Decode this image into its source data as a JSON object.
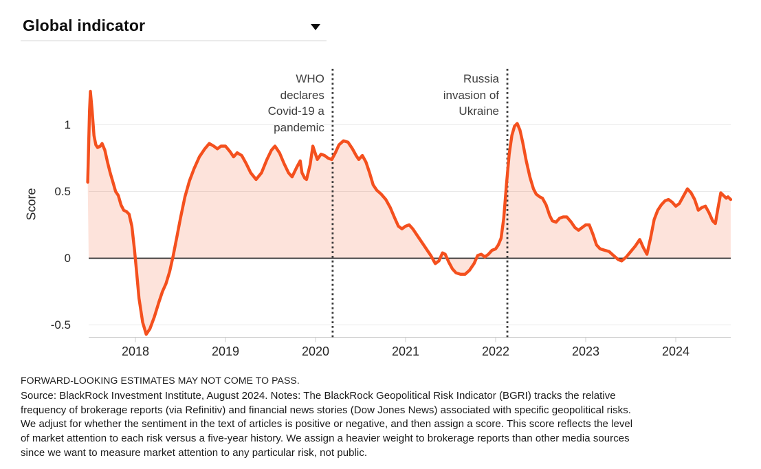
{
  "header": {
    "title": "Global indicator",
    "dropdown_icon": "chevron-down"
  },
  "axis": {
    "ylabel": "Score"
  },
  "chart_data": {
    "type": "area",
    "title": "Global indicator",
    "xlabel": "",
    "ylabel": "Score",
    "xlim": [
      2017.47,
      2024.61
    ],
    "ylim": [
      -0.59,
      1.42
    ],
    "x_ticks": [
      2018,
      2019,
      2020,
      2021,
      2022,
      2023,
      2024
    ],
    "y_ticks": [
      1,
      0.5,
      0,
      -0.5
    ],
    "grid": "horizontal",
    "legend": "none",
    "line_color": "#F4501E",
    "fill_color": "rgba(244,80,30,0.16)",
    "zero_line_color": "#2d2d2d",
    "gridline_color": "#e9e9e9",
    "axis_line_color": "#cccccc",
    "annotation_line_color": "#3a3a3a",
    "annotations": [
      {
        "x": 2020.19,
        "label": "WHO declares Covid-19 a pandemic",
        "lines": [
          "WHO",
          "declares",
          "Covid-19 a",
          "pandemic"
        ]
      },
      {
        "x": 2022.13,
        "label": "Russia invasion of Ukraine",
        "lines": [
          "Russia",
          "invasion of",
          "Ukraine"
        ]
      }
    ],
    "series": [
      {
        "name": "Global indicator (BGRI score)",
        "points": [
          [
            2017.47,
            0.57
          ],
          [
            2017.49,
            1.1
          ],
          [
            2017.5,
            1.25
          ],
          [
            2017.52,
            1.1
          ],
          [
            2017.54,
            0.92
          ],
          [
            2017.56,
            0.85
          ],
          [
            2017.58,
            0.83
          ],
          [
            2017.61,
            0.84
          ],
          [
            2017.63,
            0.86
          ],
          [
            2017.66,
            0.81
          ],
          [
            2017.69,
            0.72
          ],
          [
            2017.72,
            0.64
          ],
          [
            2017.75,
            0.57
          ],
          [
            2017.78,
            0.5
          ],
          [
            2017.81,
            0.47
          ],
          [
            2017.84,
            0.4
          ],
          [
            2017.87,
            0.36
          ],
          [
            2017.9,
            0.35
          ],
          [
            2017.93,
            0.33
          ],
          [
            2017.96,
            0.24
          ],
          [
            2017.99,
            0.06
          ],
          [
            2018.01,
            -0.08
          ],
          [
            2018.04,
            -0.3
          ],
          [
            2018.08,
            -0.48
          ],
          [
            2018.12,
            -0.57
          ],
          [
            2018.16,
            -0.53
          ],
          [
            2018.21,
            -0.44
          ],
          [
            2018.26,
            -0.33
          ],
          [
            2018.3,
            -0.25
          ],
          [
            2018.34,
            -0.19
          ],
          [
            2018.38,
            -0.1
          ],
          [
            2018.42,
            0.02
          ],
          [
            2018.46,
            0.16
          ],
          [
            2018.5,
            0.3
          ],
          [
            2018.55,
            0.46
          ],
          [
            2018.6,
            0.58
          ],
          [
            2018.65,
            0.67
          ],
          [
            2018.71,
            0.76
          ],
          [
            2018.77,
            0.82
          ],
          [
            2018.82,
            0.86
          ],
          [
            2018.87,
            0.84
          ],
          [
            2018.91,
            0.82
          ],
          [
            2018.95,
            0.84
          ],
          [
            2019.0,
            0.84
          ],
          [
            2019.05,
            0.8
          ],
          [
            2019.09,
            0.76
          ],
          [
            2019.13,
            0.79
          ],
          [
            2019.18,
            0.77
          ],
          [
            2019.23,
            0.71
          ],
          [
            2019.28,
            0.64
          ],
          [
            2019.34,
            0.59
          ],
          [
            2019.4,
            0.64
          ],
          [
            2019.46,
            0.74
          ],
          [
            2019.51,
            0.81
          ],
          [
            2019.55,
            0.84
          ],
          [
            2019.6,
            0.79
          ],
          [
            2019.65,
            0.71
          ],
          [
            2019.7,
            0.64
          ],
          [
            2019.74,
            0.61
          ],
          [
            2019.79,
            0.68
          ],
          [
            2019.83,
            0.73
          ],
          [
            2019.85,
            0.64
          ],
          [
            2019.88,
            0.6
          ],
          [
            2019.9,
            0.59
          ],
          [
            2019.94,
            0.7
          ],
          [
            2019.97,
            0.84
          ],
          [
            2020.0,
            0.78
          ],
          [
            2020.02,
            0.74
          ],
          [
            2020.06,
            0.78
          ],
          [
            2020.1,
            0.77
          ],
          [
            2020.14,
            0.75
          ],
          [
            2020.18,
            0.74
          ],
          [
            2020.22,
            0.79
          ],
          [
            2020.26,
            0.85
          ],
          [
            2020.31,
            0.88
          ],
          [
            2020.36,
            0.87
          ],
          [
            2020.41,
            0.82
          ],
          [
            2020.45,
            0.77
          ],
          [
            2020.48,
            0.74
          ],
          [
            2020.52,
            0.77
          ],
          [
            2020.56,
            0.72
          ],
          [
            2020.6,
            0.64
          ],
          [
            2020.64,
            0.55
          ],
          [
            2020.68,
            0.51
          ],
          [
            2020.73,
            0.48
          ],
          [
            2020.78,
            0.44
          ],
          [
            2020.83,
            0.38
          ],
          [
            2020.88,
            0.3
          ],
          [
            2020.92,
            0.24
          ],
          [
            2020.96,
            0.22
          ],
          [
            2021.0,
            0.24
          ],
          [
            2021.04,
            0.25
          ],
          [
            2021.08,
            0.22
          ],
          [
            2021.13,
            0.17
          ],
          [
            2021.18,
            0.12
          ],
          [
            2021.23,
            0.07
          ],
          [
            2021.28,
            0.02
          ],
          [
            2021.33,
            -0.04
          ],
          [
            2021.37,
            -0.02
          ],
          [
            2021.41,
            0.04
          ],
          [
            2021.44,
            0.03
          ],
          [
            2021.48,
            -0.03
          ],
          [
            2021.52,
            -0.08
          ],
          [
            2021.56,
            -0.11
          ],
          [
            2021.61,
            -0.12
          ],
          [
            2021.66,
            -0.12
          ],
          [
            2021.71,
            -0.09
          ],
          [
            2021.76,
            -0.04
          ],
          [
            2021.8,
            0.02
          ],
          [
            2021.84,
            0.03
          ],
          [
            2021.88,
            0.01
          ],
          [
            2021.92,
            0.03
          ],
          [
            2021.96,
            0.06
          ],
          [
            2022.0,
            0.07
          ],
          [
            2022.03,
            0.1
          ],
          [
            2022.06,
            0.15
          ],
          [
            2022.09,
            0.3
          ],
          [
            2022.12,
            0.55
          ],
          [
            2022.15,
            0.78
          ],
          [
            2022.18,
            0.92
          ],
          [
            2022.21,
            0.99
          ],
          [
            2022.24,
            1.01
          ],
          [
            2022.27,
            0.96
          ],
          [
            2022.3,
            0.87
          ],
          [
            2022.34,
            0.73
          ],
          [
            2022.38,
            0.61
          ],
          [
            2022.42,
            0.52
          ],
          [
            2022.45,
            0.48
          ],
          [
            2022.49,
            0.46
          ],
          [
            2022.52,
            0.45
          ],
          [
            2022.56,
            0.4
          ],
          [
            2022.6,
            0.32
          ],
          [
            2022.63,
            0.28
          ],
          [
            2022.67,
            0.27
          ],
          [
            2022.71,
            0.3
          ],
          [
            2022.75,
            0.31
          ],
          [
            2022.79,
            0.31
          ],
          [
            2022.84,
            0.27
          ],
          [
            2022.88,
            0.23
          ],
          [
            2022.92,
            0.21
          ],
          [
            2022.96,
            0.23
          ],
          [
            2023.0,
            0.25
          ],
          [
            2023.04,
            0.25
          ],
          [
            2023.08,
            0.18
          ],
          [
            2023.12,
            0.1
          ],
          [
            2023.16,
            0.07
          ],
          [
            2023.21,
            0.06
          ],
          [
            2023.26,
            0.05
          ],
          [
            2023.31,
            0.02
          ],
          [
            2023.36,
            -0.01
          ],
          [
            2023.4,
            -0.02
          ],
          [
            2023.45,
            0.01
          ],
          [
            2023.5,
            0.05
          ],
          [
            2023.55,
            0.09
          ],
          [
            2023.6,
            0.14
          ],
          [
            2023.64,
            0.08
          ],
          [
            2023.68,
            0.03
          ],
          [
            2023.72,
            0.15
          ],
          [
            2023.76,
            0.29
          ],
          [
            2023.8,
            0.36
          ],
          [
            2023.84,
            0.4
          ],
          [
            2023.88,
            0.43
          ],
          [
            2023.92,
            0.44
          ],
          [
            2023.96,
            0.42
          ],
          [
            2024.0,
            0.39
          ],
          [
            2024.04,
            0.41
          ],
          [
            2024.08,
            0.46
          ],
          [
            2024.13,
            0.52
          ],
          [
            2024.17,
            0.49
          ],
          [
            2024.21,
            0.44
          ],
          [
            2024.25,
            0.36
          ],
          [
            2024.29,
            0.38
          ],
          [
            2024.33,
            0.39
          ],
          [
            2024.37,
            0.34
          ],
          [
            2024.41,
            0.28
          ],
          [
            2024.44,
            0.26
          ],
          [
            2024.47,
            0.38
          ],
          [
            2024.5,
            0.49
          ],
          [
            2024.53,
            0.47
          ],
          [
            2024.56,
            0.45
          ],
          [
            2024.58,
            0.46
          ],
          [
            2024.61,
            0.44
          ]
        ]
      }
    ]
  },
  "footer": {
    "disclaimer": "FORWARD-LOOKING ESTIMATES MAY NOT COME TO PASS.",
    "source_text": "Source: BlackRock Investment Institute, August 2024. Notes: The BlackRock Geopolitical Risk Indicator (BGRI) tracks the relative\nfrequency of brokerage reports (via Refinitiv) and financial news stories (Dow Jones News) associated with specific geopolitical risks.\nWe adjust for whether the sentiment in the text of articles is positive or negative, and then assign a score. This score reflects the level\nof market attention to each risk versus a five-year history. We assign a heavier weight to brokerage reports than other media sources\nsince we want to measure market attention to any particular risk, not public."
  }
}
